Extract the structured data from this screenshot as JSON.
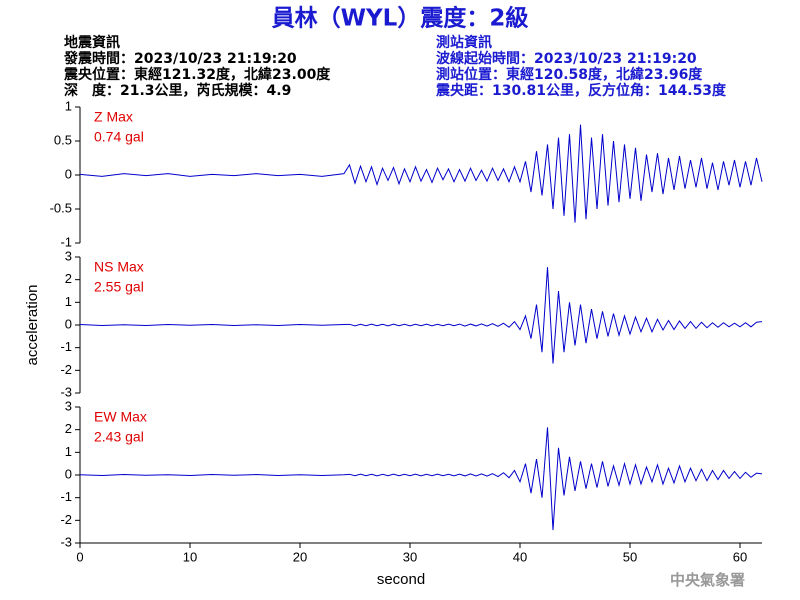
{
  "header": {
    "title": "員林（WYL）震度：2級",
    "left": [
      "地震資訊",
      "發震時間：2023/10/23 21:19:20",
      "震央位置：東經121.32度，北緯23.00度",
      "深　度：21.3公里，芮氏規模：4.9"
    ],
    "right": [
      "測站資訊",
      "波線起始時間：2023/10/23 21:19:20",
      "測站位置：東經120.58度，北緯23.96度",
      "震央距：130.81公里，反方位角：144.53度"
    ],
    "footer": "中央氣象署"
  },
  "chart_data": [
    {
      "type": "line",
      "name": "Z Max",
      "max_label": "0.74 gal",
      "color": "#0000cc",
      "xlim": [
        0,
        62
      ],
      "ylim": [
        -1,
        1
      ],
      "yticks": [
        1,
        0.5,
        0,
        -0.5,
        -1
      ],
      "x": [
        0,
        2,
        4,
        6,
        8,
        10,
        12,
        14,
        16,
        18,
        20,
        22,
        24,
        24.5,
        25,
        25.5,
        26,
        26.5,
        27,
        27.5,
        28,
        28.5,
        29,
        29.5,
        30,
        30.5,
        31,
        31.5,
        32,
        32.5,
        33,
        33.5,
        34,
        34.5,
        35,
        35.5,
        36,
        36.5,
        37,
        37.5,
        38,
        38.5,
        39,
        39.5,
        40,
        40.5,
        41,
        41.5,
        42,
        42.5,
        43,
        43.5,
        44,
        44.5,
        45,
        45.5,
        46,
        46.5,
        47,
        47.5,
        48,
        48.5,
        49,
        49.5,
        50,
        50.5,
        51,
        51.5,
        52,
        52.5,
        53,
        53.5,
        54,
        54.5,
        55,
        55.5,
        56,
        56.5,
        57,
        57.5,
        58,
        58.5,
        59,
        59.5,
        60,
        60.5,
        61,
        61.5,
        62
      ],
      "values": [
        0.01,
        -0.02,
        0.02,
        -0.01,
        0.02,
        -0.02,
        0.01,
        -0.01,
        0.02,
        -0.01,
        0.01,
        -0.02,
        0.02,
        0.15,
        -0.12,
        0.13,
        -0.1,
        0.12,
        -0.14,
        0.1,
        -0.08,
        0.11,
        -0.13,
        0.09,
        -0.1,
        0.12,
        -0.09,
        0.08,
        -0.11,
        0.1,
        -0.07,
        0.09,
        -0.1,
        0.08,
        -0.09,
        0.1,
        -0.08,
        0.07,
        -0.09,
        0.1,
        -0.08,
        0.09,
        -0.1,
        0.12,
        -0.1,
        0.2,
        -0.25,
        0.35,
        -0.3,
        0.45,
        -0.5,
        0.55,
        -0.6,
        0.6,
        -0.7,
        0.74,
        -0.65,
        0.55,
        -0.5,
        0.6,
        -0.45,
        0.5,
        -0.4,
        0.45,
        -0.35,
        0.4,
        -0.38,
        0.3,
        -0.25,
        0.32,
        -0.28,
        0.25,
        -0.22,
        0.28,
        -0.2,
        0.22,
        -0.18,
        0.25,
        -0.2,
        0.18,
        -0.22,
        0.2,
        -0.15,
        0.22,
        -0.18,
        0.2,
        -0.15,
        0.25,
        -0.1
      ]
    },
    {
      "type": "line",
      "name": "NS Max",
      "max_label": "2.55 gal",
      "color": "#0000cc",
      "xlim": [
        0,
        62
      ],
      "ylim": [
        -3,
        3
      ],
      "yticks": [
        3,
        2,
        1,
        0,
        -1,
        -2,
        -3
      ],
      "ylabel": "acceleration",
      "x": [
        0,
        2,
        4,
        6,
        8,
        10,
        12,
        14,
        16,
        18,
        20,
        22,
        24,
        24.5,
        25,
        25.5,
        26,
        26.5,
        27,
        27.5,
        28,
        28.5,
        29,
        29.5,
        30,
        30.5,
        31,
        31.5,
        32,
        32.5,
        33,
        33.5,
        34,
        34.5,
        35,
        35.5,
        36,
        36.5,
        37,
        37.5,
        38,
        38.5,
        39,
        39.5,
        40,
        40.5,
        41,
        41.5,
        42,
        42.5,
        43,
        43.5,
        44,
        44.5,
        45,
        45.5,
        46,
        46.5,
        47,
        47.5,
        48,
        48.5,
        49,
        49.5,
        50,
        50.5,
        51,
        51.5,
        52,
        52.5,
        53,
        53.5,
        54,
        54.5,
        55,
        55.5,
        56,
        56.5,
        57,
        57.5,
        58,
        58.5,
        59,
        59.5,
        60,
        60.5,
        61,
        61.5,
        62
      ],
      "values": [
        0.02,
        -0.02,
        0.01,
        -0.02,
        0.02,
        -0.01,
        0.02,
        -0.02,
        0.01,
        -0.02,
        0.02,
        -0.01,
        0.02,
        0.03,
        -0.04,
        0.03,
        -0.03,
        0.04,
        -0.03,
        0.03,
        -0.04,
        0.04,
        -0.03,
        0.03,
        -0.04,
        0.03,
        -0.03,
        0.04,
        -0.04,
        0.03,
        -0.03,
        0.04,
        -0.03,
        0.04,
        -0.05,
        0.04,
        -0.04,
        0.05,
        -0.05,
        0.06,
        -0.06,
        0.08,
        -0.1,
        0.15,
        -0.2,
        0.4,
        -0.6,
        0.9,
        -1.2,
        2.55,
        -1.7,
        1.5,
        -1.2,
        1.0,
        -0.9,
        0.9,
        -0.8,
        0.7,
        -0.6,
        0.6,
        -0.5,
        0.5,
        -0.45,
        0.4,
        -0.4,
        0.35,
        -0.3,
        0.3,
        -0.3,
        0.25,
        -0.22,
        0.2,
        -0.2,
        0.18,
        -0.15,
        0.15,
        -0.15,
        0.12,
        -0.12,
        0.1,
        -0.1,
        0.1,
        -0.08,
        0.08,
        -0.08,
        0.1,
        -0.08,
        0.12,
        0.15
      ]
    },
    {
      "type": "line",
      "name": "EW Max",
      "max_label": "2.43 gal",
      "color": "#0000cc",
      "xlim": [
        0,
        62
      ],
      "ylim": [
        -3,
        3
      ],
      "yticks": [
        3,
        2,
        1,
        0,
        -1,
        -2,
        -3
      ],
      "xticks": [
        0,
        10,
        20,
        30,
        40,
        50,
        60
      ],
      "xlabel": "second",
      "x": [
        0,
        2,
        4,
        6,
        8,
        10,
        12,
        14,
        16,
        18,
        20,
        22,
        24,
        24.5,
        25,
        25.5,
        26,
        26.5,
        27,
        27.5,
        28,
        28.5,
        29,
        29.5,
        30,
        30.5,
        31,
        31.5,
        32,
        32.5,
        33,
        33.5,
        34,
        34.5,
        35,
        35.5,
        36,
        36.5,
        37,
        37.5,
        38,
        38.5,
        39,
        39.5,
        40,
        40.5,
        41,
        41.5,
        42,
        42.5,
        43,
        43.5,
        44,
        44.5,
        45,
        45.5,
        46,
        46.5,
        47,
        47.5,
        48,
        48.5,
        49,
        49.5,
        50,
        50.5,
        51,
        51.5,
        52,
        52.5,
        53,
        53.5,
        54,
        54.5,
        55,
        55.5,
        56,
        56.5,
        57,
        57.5,
        58,
        58.5,
        59,
        59.5,
        60,
        60.5,
        61,
        61.5,
        62
      ],
      "values": [
        0.01,
        -0.02,
        0.02,
        -0.01,
        0.01,
        -0.02,
        0.02,
        -0.01,
        0.02,
        -0.02,
        0.01,
        -0.02,
        0.01,
        0.03,
        -0.03,
        0.04,
        -0.03,
        0.03,
        -0.04,
        0.03,
        -0.03,
        0.04,
        -0.03,
        0.03,
        -0.03,
        0.04,
        -0.04,
        0.03,
        -0.03,
        0.04,
        -0.03,
        0.03,
        -0.04,
        0.04,
        -0.04,
        0.05,
        -0.04,
        0.05,
        -0.05,
        0.06,
        -0.07,
        0.1,
        -0.12,
        0.2,
        -0.3,
        0.5,
        -0.8,
        0.7,
        -1.0,
        2.1,
        -2.43,
        1.2,
        -0.9,
        0.8,
        -0.7,
        0.6,
        -0.6,
        0.5,
        -0.55,
        0.6,
        -0.5,
        0.4,
        -0.45,
        0.5,
        -0.4,
        0.45,
        -0.4,
        0.35,
        -0.3,
        0.45,
        -0.4,
        0.3,
        -0.35,
        0.4,
        -0.3,
        0.3,
        -0.25,
        0.25,
        -0.25,
        0.2,
        -0.2,
        0.2,
        -0.15,
        0.15,
        -0.15,
        0.12,
        -0.1,
        0.08,
        0.05
      ]
    }
  ]
}
